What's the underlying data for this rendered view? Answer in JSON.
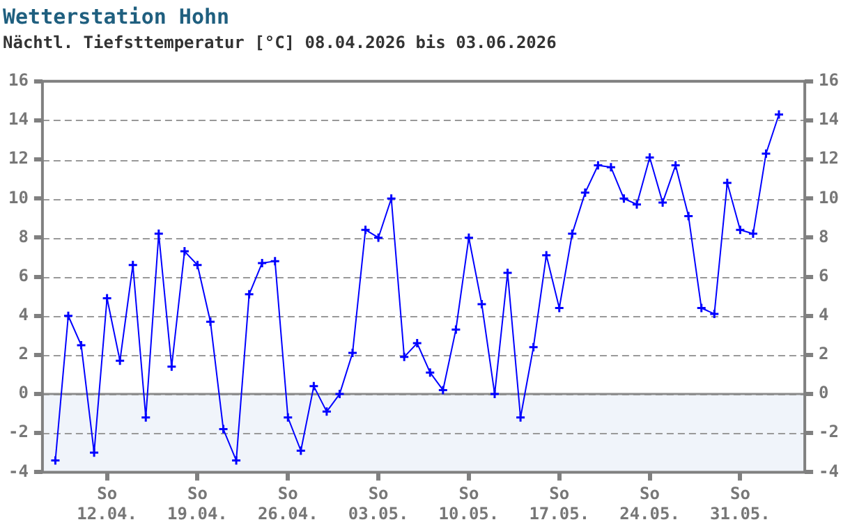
{
  "chart_data": {
    "type": "line",
    "title": "Wetterstation Hohn",
    "subtitle": "Nächtl. Tiefsttemperatur [°C] 08.04.2026 bis 03.06.2026",
    "x": [
      "2026-04-08",
      "2026-04-09",
      "2026-04-10",
      "2026-04-11",
      "2026-04-12",
      "2026-04-13",
      "2026-04-14",
      "2026-04-15",
      "2026-04-16",
      "2026-04-17",
      "2026-04-18",
      "2026-04-19",
      "2026-04-20",
      "2026-04-21",
      "2026-04-22",
      "2026-04-23",
      "2026-04-24",
      "2026-04-25",
      "2026-04-26",
      "2026-04-27",
      "2026-04-28",
      "2026-04-29",
      "2026-04-30",
      "2026-05-01",
      "2026-05-02",
      "2026-05-03",
      "2026-05-04",
      "2026-05-05",
      "2026-05-06",
      "2026-05-07",
      "2026-05-08",
      "2026-05-09",
      "2026-05-10",
      "2026-05-11",
      "2026-05-12",
      "2026-05-13",
      "2026-05-14",
      "2026-05-15",
      "2026-05-16",
      "2026-05-17",
      "2026-05-18",
      "2026-05-19",
      "2026-05-20",
      "2026-05-21",
      "2026-05-22",
      "2026-05-23",
      "2026-05-24",
      "2026-05-25",
      "2026-05-26",
      "2026-05-27",
      "2026-05-28",
      "2026-05-29",
      "2026-05-30",
      "2026-05-31",
      "2026-06-01",
      "2026-06-02",
      "2026-06-03"
    ],
    "series": [
      {
        "color": "#0000ff",
        "values": [
          -3.4,
          4.0,
          2.5,
          -3.0,
          4.9,
          1.7,
          6.6,
          -1.2,
          8.2,
          1.4,
          7.3,
          6.6,
          3.7,
          -1.8,
          -3.4,
          5.1,
          6.7,
          6.8,
          -1.2,
          -2.9,
          0.4,
          -0.9,
          0.0,
          2.1,
          8.4,
          8.0,
          10.0,
          1.9,
          2.6,
          1.1,
          0.2,
          3.3,
          8.0,
          4.6,
          0.0,
          6.2,
          -1.2,
          2.4,
          7.1,
          4.4,
          8.2,
          10.3,
          11.7,
          11.6,
          10.0,
          9.7,
          12.1,
          9.8,
          11.7,
          9.1,
          4.4,
          4.1,
          10.8,
          8.4,
          8.2,
          12.3,
          14.3
        ]
      }
    ],
    "xlim": [
      "2026-04-07",
      "2026-06-05"
    ],
    "xticks": [
      {
        "value": "2026-04-12",
        "label": "So\n12.04."
      },
      {
        "value": "2026-04-19",
        "label": "So\n19.04."
      },
      {
        "value": "2026-04-26",
        "label": "So\n26.04."
      },
      {
        "value": "2026-05-03",
        "label": "So\n03.05."
      },
      {
        "value": "2026-05-10",
        "label": "So\n10.05."
      },
      {
        "value": "2026-05-17",
        "label": "So\n17.05."
      },
      {
        "value": "2026-05-24",
        "label": "So\n24.05."
      },
      {
        "value": "2026-05-31",
        "label": "So\n31.05."
      }
    ],
    "ylim": [
      -4,
      16
    ],
    "yticks": [
      -4,
      -2,
      0,
      2,
      4,
      6,
      8,
      10,
      12,
      14,
      16
    ],
    "y2lim": [
      -4,
      16
    ],
    "y2ticks": [
      -4,
      -2,
      0,
      2,
      4,
      6,
      8,
      10,
      12,
      14,
      16
    ],
    "bands": [
      {
        "axis": "y",
        "from": -4,
        "to": 0,
        "color": "#f0f4fa"
      }
    ],
    "ref_lines": [
      {
        "axis": "y",
        "value": 0,
        "color": "#8c8c8c",
        "line_style": "solid"
      }
    ],
    "grid": "y",
    "marker": "cross",
    "line_style": "solid"
  }
}
